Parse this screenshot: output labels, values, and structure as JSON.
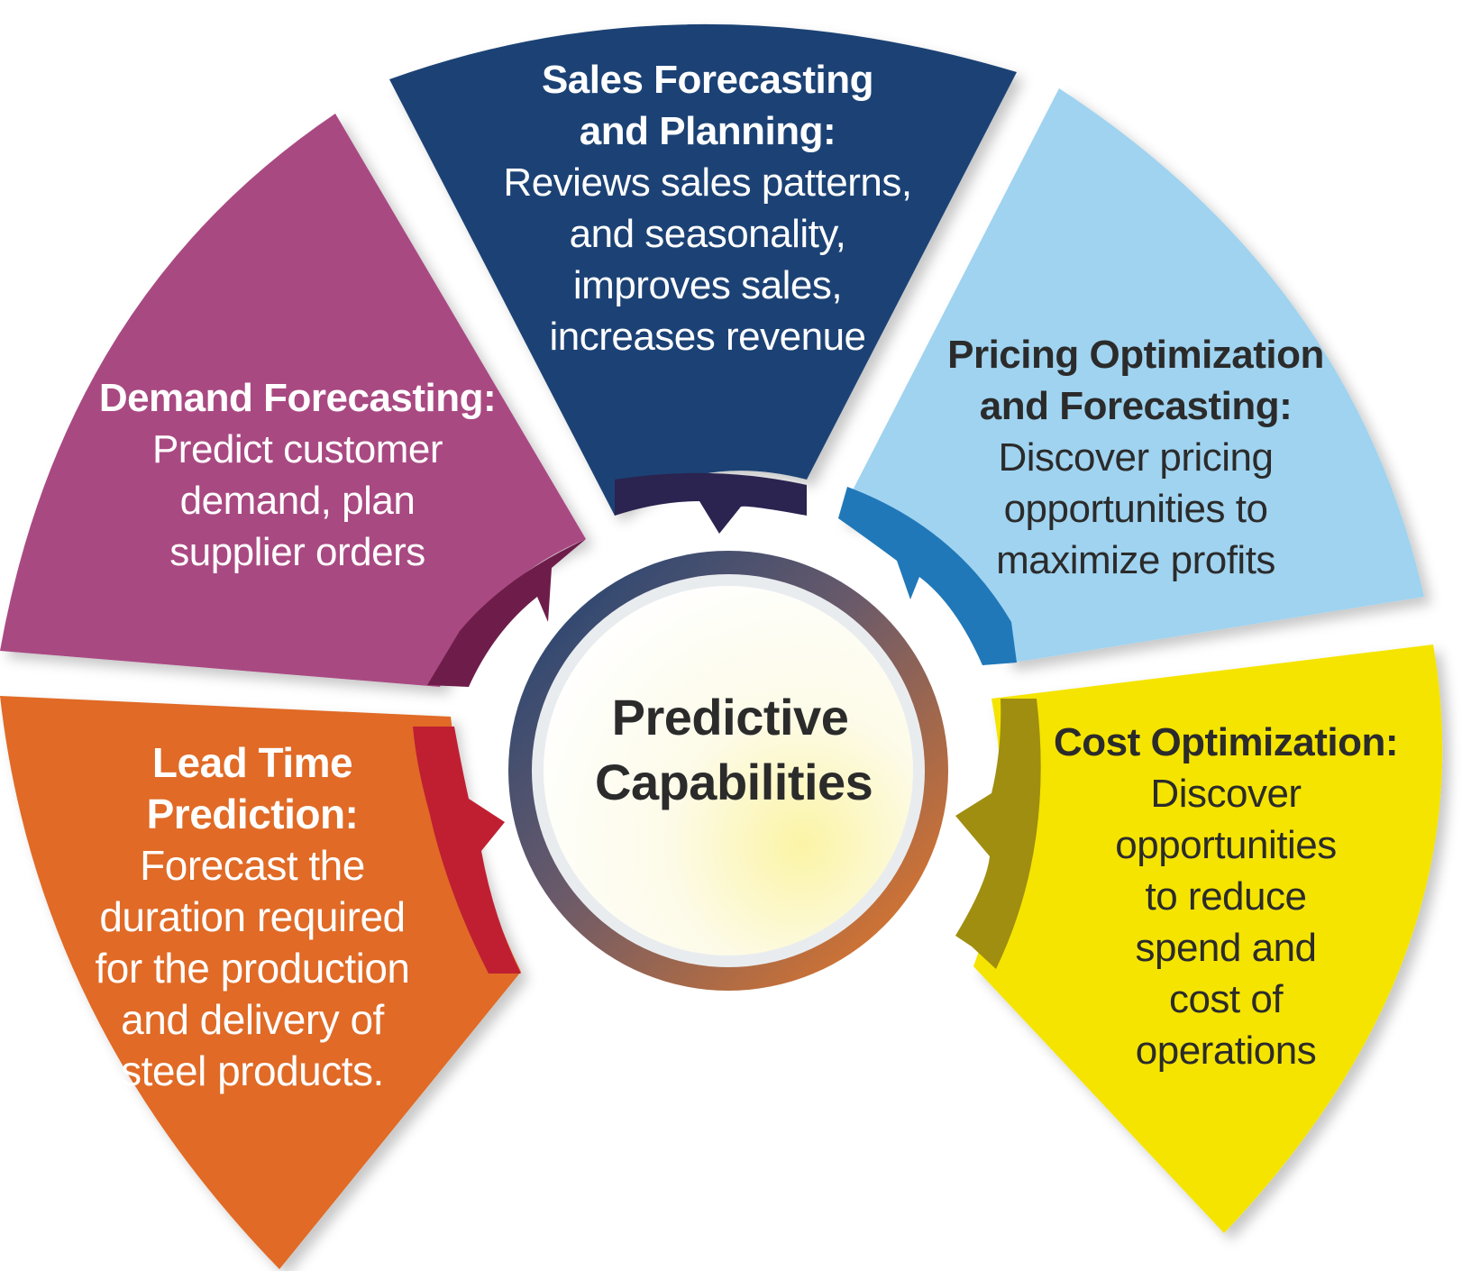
{
  "center": {
    "line1": "Predictive",
    "line2": "Capabilities"
  },
  "segments": {
    "sales": {
      "title_l1": "Sales Forecasting",
      "title_l2": "and Planning:",
      "desc_l1": "Reviews sales patterns,",
      "desc_l2": "and seasonality,",
      "desc_l3": "improves sales,",
      "desc_l4": "increases revenue",
      "color": "#1a4275"
    },
    "demand": {
      "title_l1": "Demand Forecasting:",
      "desc_l1": "Predict customer",
      "desc_l2": "demand, plan",
      "desc_l3": "supplier orders",
      "color": "#a94a82"
    },
    "pricing": {
      "title_l1": "Pricing Optimization",
      "title_l2": "and Forecasting:",
      "desc_l1": "Discover pricing",
      "desc_l2": "opportunities to",
      "desc_l3": "maximize profits",
      "color": "#9fd3f0"
    },
    "lead_time": {
      "title_l1": "Lead Time",
      "title_l2": "Prediction:",
      "desc_l1": "Forecast the",
      "desc_l2": "duration required",
      "desc_l3": "for the production",
      "desc_l4": "and delivery of",
      "desc_l5": "steel products.",
      "color": "#e06b27"
    },
    "cost": {
      "title_l1": "Cost Optimization:",
      "desc_l1": "Discover",
      "desc_l2": "opportunities",
      "desc_l3": "to reduce",
      "desc_l4": "spend and",
      "desc_l5": "cost of",
      "desc_l6": "operations",
      "color": "#f5e400"
    }
  }
}
